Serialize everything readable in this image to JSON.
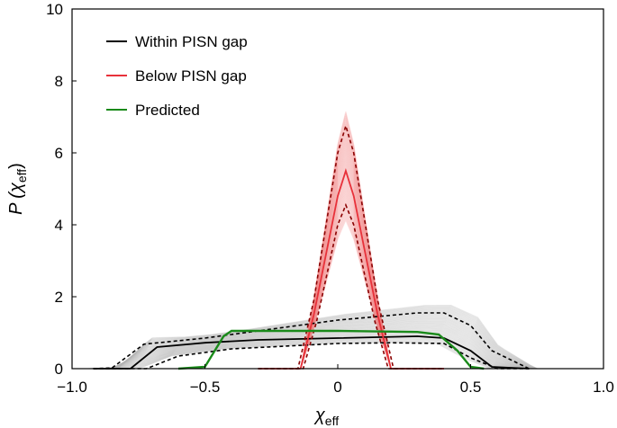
{
  "chart_data": {
    "type": "line",
    "xlabel": "χ",
    "xlabel_sub": "eff",
    "ylabel": "P (χ",
    "ylabel_sub": "eff",
    "ylabel_close": ")",
    "xlim": [
      -1.0,
      1.0
    ],
    "ylim": [
      0,
      10
    ],
    "x_ticks": [
      -1.0,
      -0.5,
      0,
      0.5,
      1.0
    ],
    "x_tick_labels": [
      "−1.0",
      "−0.5",
      "0",
      "0.5",
      "1.0"
    ],
    "y_ticks": [
      0,
      2,
      4,
      6,
      8,
      10
    ],
    "y_tick_labels": [
      "0",
      "2",
      "4",
      "6",
      "8",
      "10"
    ],
    "grid": false,
    "legend": "top-left",
    "series": [
      {
        "name": "Within PISN gap",
        "color": "#000000",
        "median": {
          "x": [
            -0.92,
            -0.78,
            -0.68,
            -0.5,
            -0.3,
            0.0,
            0.3,
            0.4,
            0.5,
            0.58,
            0.72
          ],
          "y": [
            0,
            0,
            0.6,
            0.72,
            0.8,
            0.85,
            0.9,
            0.85,
            0.5,
            0.05,
            0
          ]
        },
        "upper": {
          "x": [
            -0.92,
            -0.85,
            -0.73,
            -0.5,
            -0.2,
            0.0,
            0.3,
            0.4,
            0.5,
            0.58,
            0.72
          ],
          "y": [
            0,
            0.02,
            0.68,
            0.85,
            1.15,
            1.35,
            1.55,
            1.55,
            1.2,
            0.5,
            0
          ]
        },
        "lower": {
          "x": [
            -0.92,
            -0.72,
            -0.6,
            -0.4,
            0.0,
            0.2,
            0.4,
            0.5,
            0.6,
            0.72
          ],
          "y": [
            0,
            0,
            0.35,
            0.55,
            0.7,
            0.72,
            0.7,
            0.3,
            0,
            0
          ]
        }
      },
      {
        "name": "Below PISN gap",
        "color": "#e8313a",
        "median": {
          "x": [
            -0.3,
            -0.14,
            -0.09,
            0.0,
            0.03,
            0.06,
            0.15,
            0.2,
            0.4
          ],
          "y": [
            0,
            0,
            1.5,
            4.8,
            5.5,
            4.8,
            1.5,
            0,
            0
          ]
        },
        "upper": {
          "x": [
            -0.3,
            -0.15,
            -0.09,
            0.0,
            0.03,
            0.06,
            0.15,
            0.21,
            0.4
          ],
          "y": [
            0,
            0,
            1.9,
            6.0,
            6.75,
            6.0,
            1.9,
            0,
            0
          ]
        },
        "lower": {
          "x": [
            -0.3,
            -0.13,
            -0.08,
            0.0,
            0.03,
            0.06,
            0.14,
            0.19,
            0.4
          ],
          "y": [
            0,
            0,
            1.3,
            4.0,
            4.55,
            4.0,
            1.3,
            0,
            0
          ]
        }
      },
      {
        "name": "Predicted",
        "color": "#1a8a1a",
        "median": {
          "x": [
            -0.6,
            -0.5,
            -0.43,
            -0.4,
            0.0,
            0.3,
            0.38,
            0.45,
            0.5,
            0.55
          ],
          "y": [
            0,
            0.05,
            0.9,
            1.05,
            1.05,
            1.02,
            0.95,
            0.5,
            0.05,
            0
          ]
        }
      }
    ]
  }
}
